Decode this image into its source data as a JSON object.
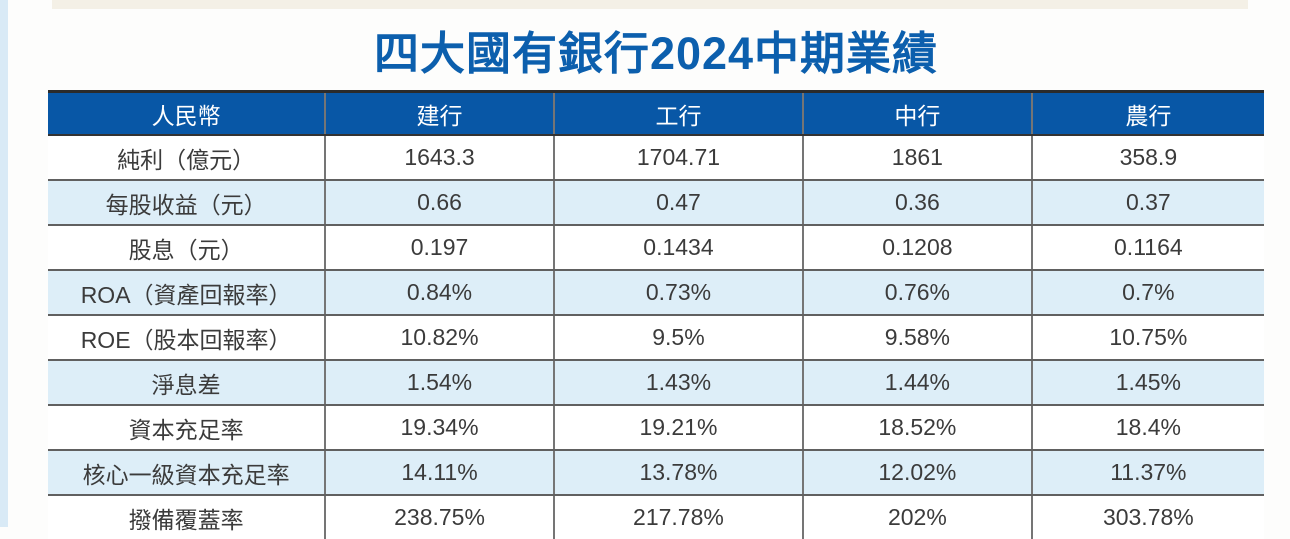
{
  "page": {
    "background": "#fdfdfc",
    "left_strip_color": "#d9eaf6",
    "top_strip_color": "#f4f0e6"
  },
  "title": {
    "text": "四大國有銀行2024中期業績",
    "color": "#0c5fad"
  },
  "chart_data": {
    "type": "table",
    "title": "四大國有銀行2024中期業績",
    "columns": [
      "人民幣",
      "建行",
      "工行",
      "中行",
      "農行"
    ],
    "column_width_pct": [
      22.8,
      18.8,
      20.5,
      18.8,
      19.1
    ],
    "rows": [
      {
        "label": "純利（億元）",
        "values": [
          "1643.3",
          "1704.71",
          "1861",
          "358.9"
        ]
      },
      {
        "label": "每股收益（元）",
        "values": [
          "0.66",
          "0.47",
          "0.36",
          "0.37"
        ]
      },
      {
        "label": "股息（元）",
        "values": [
          "0.197",
          "0.1434",
          "0.1208",
          "0.1164"
        ]
      },
      {
        "label": "ROA（資產回報率）",
        "values": [
          "0.84%",
          "0.73%",
          "0.76%",
          "0.7%"
        ]
      },
      {
        "label": "ROE（股本回報率）",
        "values": [
          "10.82%",
          "9.5%",
          "9.58%",
          "10.75%"
        ]
      },
      {
        "label": "淨息差",
        "values": [
          "1.54%",
          "1.43%",
          "1.44%",
          "1.45%"
        ]
      },
      {
        "label": "資本充足率",
        "values": [
          "19.34%",
          "19.21%",
          "18.52%",
          "18.4%"
        ]
      },
      {
        "label": "核心一級資本充足率",
        "values": [
          "14.11%",
          "13.78%",
          "12.02%",
          "11.37%"
        ]
      },
      {
        "label": "撥備覆蓋率",
        "values": [
          "238.75%",
          "217.78%",
          "202%",
          "303.78%"
        ]
      }
    ],
    "style": {
      "header_bg": "#0857a6",
      "header_text": "#ffffff",
      "row_bg": "#ffffff",
      "alt_row_bg": "#ddeef8",
      "cell_text": "#3b3b3b"
    },
    "legend": "none",
    "grid": "full-borders"
  }
}
